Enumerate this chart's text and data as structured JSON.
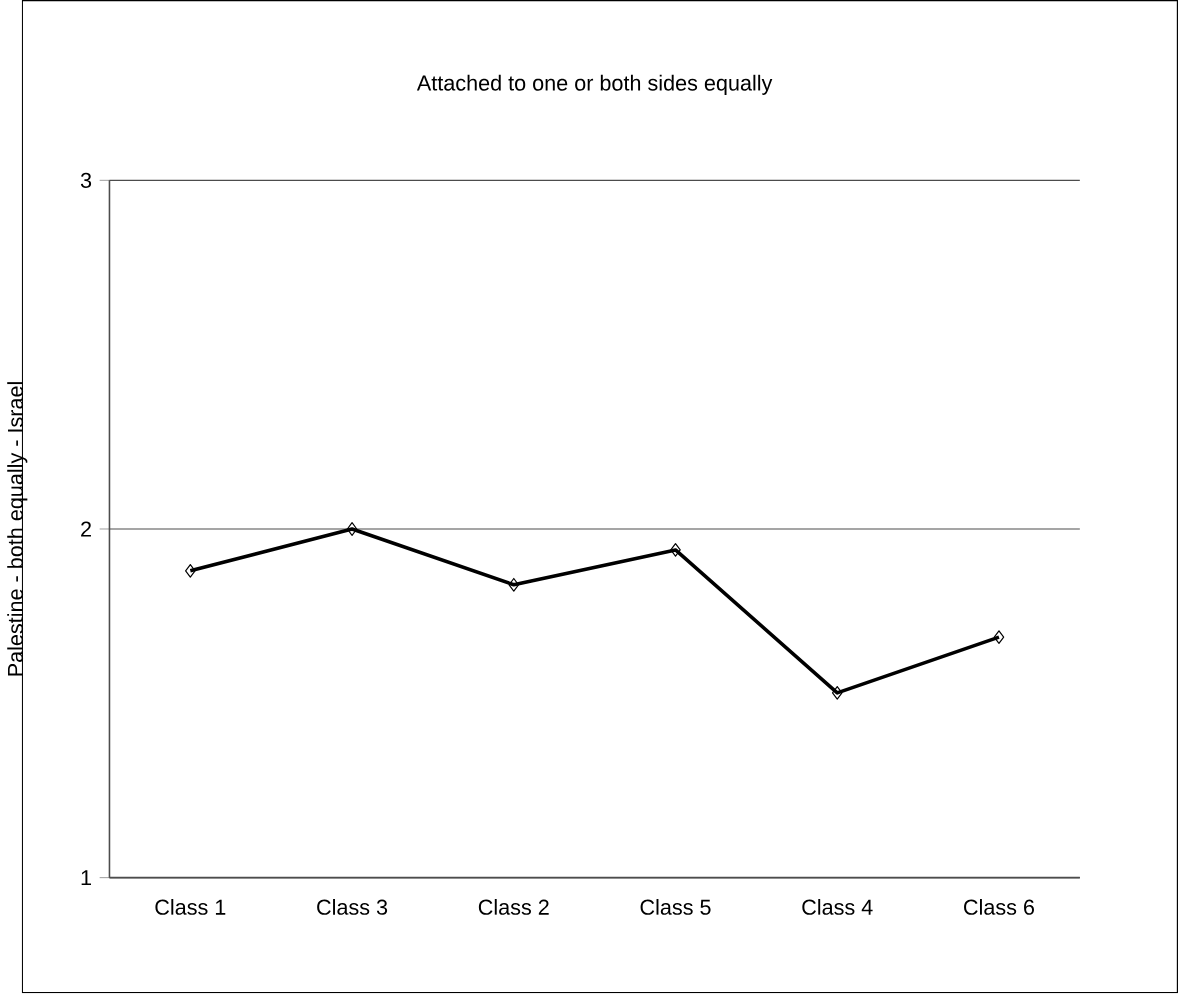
{
  "chart_data": {
    "type": "line",
    "title": "Attached to one or both sides equally",
    "ylabel": "Palestine - both equally - Israel",
    "categories": [
      "Class 1",
      "Class 3",
      "Class 2",
      "Class 5",
      "Class 4",
      "Class 6"
    ],
    "series": [
      {
        "color": "#000000",
        "values": [
          1.88,
          2.0,
          1.84,
          1.94,
          1.53,
          1.69
        ]
      }
    ],
    "ylim": [
      1,
      3
    ],
    "yticks": [
      1,
      2,
      3
    ],
    "grid": "y",
    "marker": "diamond",
    "line_style": "solid"
  }
}
